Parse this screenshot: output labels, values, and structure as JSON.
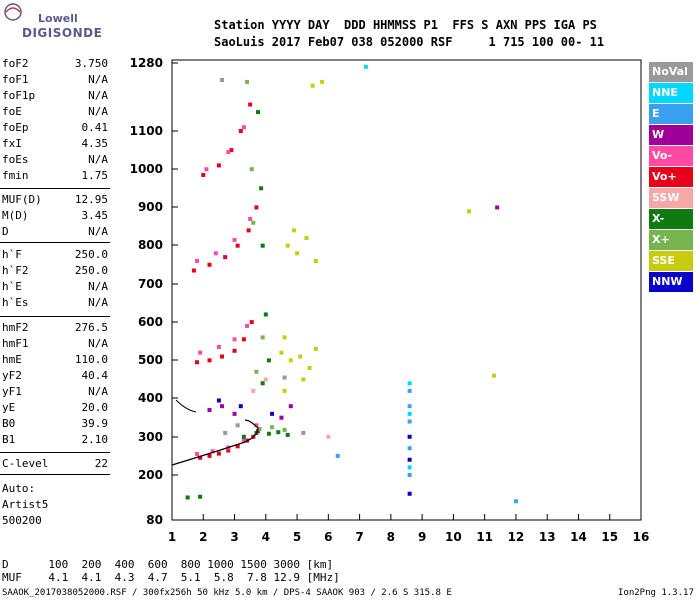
{
  "logo": {
    "top": "Lowell",
    "bottom": "DIGISONDE"
  },
  "header": {
    "line1": "Station YYYY DAY  DDD HHMMSS P1  FFS S AXN PPS IGA PS",
    "line2": "SaoLuis 2017 Feb07 038 052000 RSF     1 715 100 00- 11"
  },
  "params": [
    {
      "name": "foF2",
      "value": "3.750"
    },
    {
      "name": "foF1",
      "value": "N/A"
    },
    {
      "name": "foF1p",
      "value": "N/A"
    },
    {
      "name": "foE",
      "value": "N/A"
    },
    {
      "name": "foEp",
      "value": "0.41"
    },
    {
      "name": "fxI",
      "value": "4.35"
    },
    {
      "name": "foEs",
      "value": "N/A"
    },
    {
      "name": "fmin",
      "value": "1.75"
    },
    {
      "name": "MUF(D)",
      "value": "12.95"
    },
    {
      "name": "M(D)",
      "value": "3.45"
    },
    {
      "name": "D",
      "value": "N/A"
    },
    {
      "name": "h`F",
      "value": "250.0"
    },
    {
      "name": "h`F2",
      "value": "250.0"
    },
    {
      "name": "h`E",
      "value": "N/A"
    },
    {
      "name": "h`Es",
      "value": "N/A"
    },
    {
      "name": "hmF2",
      "value": "276.5"
    },
    {
      "name": "hmF1",
      "value": "N/A"
    },
    {
      "name": "hmE",
      "value": "110.0"
    },
    {
      "name": "yF2",
      "value": "40.4"
    },
    {
      "name": "yF1",
      "value": "N/A"
    },
    {
      "name": "yE",
      "value": "20.0"
    },
    {
      "name": "B0",
      "value": "39.9"
    },
    {
      "name": "B1",
      "value": "2.10"
    },
    {
      "name": "C-level",
      "value": "22"
    }
  ],
  "autoscaling": {
    "line1": "Auto:",
    "line2": "Artist5",
    "line3": "500200"
  },
  "muf_table": {
    "d_row": "D      100  200  400  600  800 1000 1500 3000 [km]",
    "muf_row": "MUF    4.1  4.1  4.3  4.7  5.1  5.8  7.8 12.9 [MHz]"
  },
  "footer": {
    "left": "SAAOK_2017038052000.RSF / 300fx256h 50 kHz 5.0 km / DPS-4 SAAOK 903 / 2.6 S 315.8 E",
    "right": "Ion2Png 1.3.17"
  },
  "legend": [
    {
      "label": "NoVal",
      "color": "#999999"
    },
    {
      "label": "NNE",
      "color": "#00d8ff"
    },
    {
      "label": "E",
      "color": "#3aa0f0"
    },
    {
      "label": "W",
      "color": "#9e0099"
    },
    {
      "label": "Vo-",
      "color": "#ff4aa5"
    },
    {
      "label": "Vo+",
      "color": "#e8001a"
    },
    {
      "label": "SSW",
      "color": "#f5a8a8"
    },
    {
      "label": "X-",
      "color": "#0e7a10"
    },
    {
      "label": "X+",
      "color": "#77b350"
    },
    {
      "label": "SSE",
      "color": "#c8cc10"
    },
    {
      "label": "NNW",
      "color": "#0a00cc"
    }
  ],
  "chart_data": {
    "type": "scatter",
    "title": "",
    "xlabel": "",
    "ylabel": "",
    "xlim": [
      1,
      16
    ],
    "ylim": [
      80,
      1280
    ],
    "x_ticks": [
      "1",
      "2",
      "3",
      "4",
      "5",
      "6",
      "7",
      "8",
      "9",
      "10",
      "11",
      "12",
      "13",
      "14",
      "15",
      "16"
    ],
    "y_ticks": [
      "80",
      "200",
      "300",
      "400",
      "500",
      "600",
      "700",
      "800",
      "900",
      "1000",
      "1100",
      "1280"
    ],
    "series": [
      {
        "name": "Vo+",
        "color": "#e8001a",
        "points": [
          [
            1.9,
            245
          ],
          [
            2.2,
            250
          ],
          [
            2.5,
            256
          ],
          [
            2.8,
            264
          ],
          [
            3.1,
            275
          ],
          [
            3.4,
            290
          ],
          [
            3.6,
            300
          ],
          [
            3.75,
            315
          ],
          [
            1.8,
            495
          ],
          [
            2.2,
            500
          ],
          [
            2.6,
            510
          ],
          [
            3.0,
            525
          ],
          [
            3.3,
            555
          ],
          [
            3.55,
            600
          ],
          [
            1.7,
            735
          ],
          [
            2.2,
            750
          ],
          [
            2.7,
            770
          ],
          [
            3.1,
            800
          ],
          [
            3.45,
            840
          ],
          [
            3.7,
            900
          ],
          [
            2.0,
            985
          ],
          [
            2.5,
            1010
          ],
          [
            2.9,
            1050
          ],
          [
            3.2,
            1100
          ],
          [
            3.5,
            1170
          ]
        ]
      },
      {
        "name": "Vo-",
        "color": "#ff4aa5",
        "points": [
          [
            1.8,
            255
          ],
          [
            2.3,
            262
          ],
          [
            2.8,
            272
          ],
          [
            3.3,
            292
          ],
          [
            3.7,
            330
          ],
          [
            1.9,
            520
          ],
          [
            2.5,
            535
          ],
          [
            3.0,
            555
          ],
          [
            3.4,
            590
          ],
          [
            1.8,
            760
          ],
          [
            2.4,
            780
          ],
          [
            3.0,
            815
          ],
          [
            3.5,
            870
          ],
          [
            2.1,
            1000
          ],
          [
            2.8,
            1045
          ],
          [
            3.3,
            1110
          ]
        ]
      },
      {
        "name": "X-",
        "color": "#0e7a10",
        "points": [
          [
            3.3,
            300
          ],
          [
            3.7,
            310
          ],
          [
            4.1,
            308
          ],
          [
            4.4,
            312
          ],
          [
            4.7,
            305
          ],
          [
            3.9,
            440
          ],
          [
            4.1,
            500
          ],
          [
            4.0,
            620
          ],
          [
            3.9,
            800
          ],
          [
            3.85,
            950
          ],
          [
            3.75,
            1150
          ],
          [
            1.5,
            140
          ],
          [
            1.9,
            142
          ]
        ]
      },
      {
        "name": "X+",
        "color": "#77b350",
        "points": [
          [
            3.8,
            320
          ],
          [
            4.2,
            325
          ],
          [
            4.6,
            318
          ],
          [
            3.7,
            470
          ],
          [
            3.9,
            560
          ],
          [
            3.6,
            860
          ],
          [
            3.55,
            1000
          ],
          [
            3.4,
            1230
          ]
        ]
      },
      {
        "name": "SSE",
        "color": "#c8cc10",
        "points": [
          [
            4.5,
            520
          ],
          [
            4.8,
            500
          ],
          [
            5.1,
            510
          ],
          [
            5.4,
            480
          ],
          [
            5.6,
            530
          ],
          [
            4.6,
            560
          ],
          [
            5.2,
            450
          ],
          [
            4.7,
            800
          ],
          [
            5.0,
            780
          ],
          [
            5.3,
            820
          ],
          [
            5.6,
            760
          ],
          [
            4.9,
            840
          ],
          [
            5.5,
            1220
          ],
          [
            5.8,
            1230
          ],
          [
            4.6,
            420
          ],
          [
            11.3,
            460
          ],
          [
            10.5,
            890
          ]
        ]
      },
      {
        "name": "W",
        "color": "#9e0099",
        "points": [
          [
            2.2,
            370
          ],
          [
            2.6,
            380
          ],
          [
            3.0,
            360
          ],
          [
            4.8,
            380
          ],
          [
            4.5,
            350
          ],
          [
            11.4,
            900
          ]
        ]
      },
      {
        "name": "NNW",
        "color": "#0a00cc",
        "points": [
          [
            2.5,
            395
          ],
          [
            3.2,
            380
          ],
          [
            4.2,
            360
          ],
          [
            8.6,
            300
          ],
          [
            8.6,
            240
          ],
          [
            8.6,
            150
          ]
        ]
      },
      {
        "name": "E",
        "color": "#3aa0f0",
        "points": [
          [
            8.6,
            420
          ],
          [
            8.6,
            380
          ],
          [
            8.6,
            340
          ],
          [
            8.6,
            270
          ],
          [
            8.6,
            200
          ],
          [
            6.3,
            250
          ],
          [
            12.0,
            130
          ]
        ]
      },
      {
        "name": "NNE",
        "color": "#00d8ff",
        "points": [
          [
            8.6,
            440
          ],
          [
            8.6,
            360
          ],
          [
            8.6,
            220
          ],
          [
            7.2,
            1270
          ]
        ]
      },
      {
        "name": "NoVal",
        "color": "#999999",
        "points": [
          [
            2.7,
            310
          ],
          [
            3.1,
            330
          ],
          [
            4.6,
            455
          ],
          [
            5.2,
            310
          ],
          [
            2.6,
            1235
          ]
        ]
      },
      {
        "name": "SSW",
        "color": "#f5a8a8",
        "points": [
          [
            3.6,
            420
          ],
          [
            4.0,
            450
          ],
          [
            6.0,
            300
          ]
        ]
      }
    ]
  }
}
